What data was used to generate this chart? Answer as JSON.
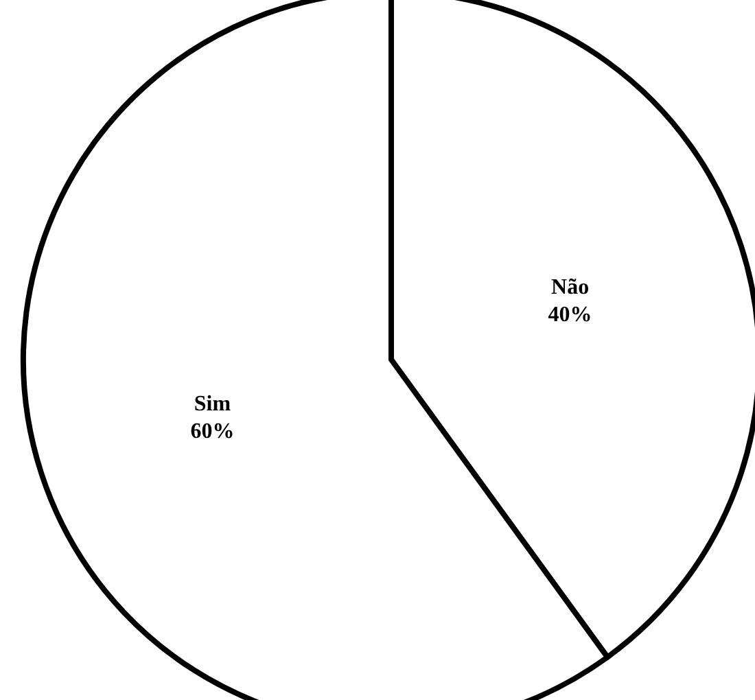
{
  "chart_data": {
    "type": "pie",
    "categories": [
      "Não",
      "Sim"
    ],
    "values": [
      40,
      60
    ],
    "colors": [
      "#ffffff",
      "#ffffff"
    ],
    "value_labels": [
      "40%",
      "60%"
    ],
    "legend": false
  }
}
